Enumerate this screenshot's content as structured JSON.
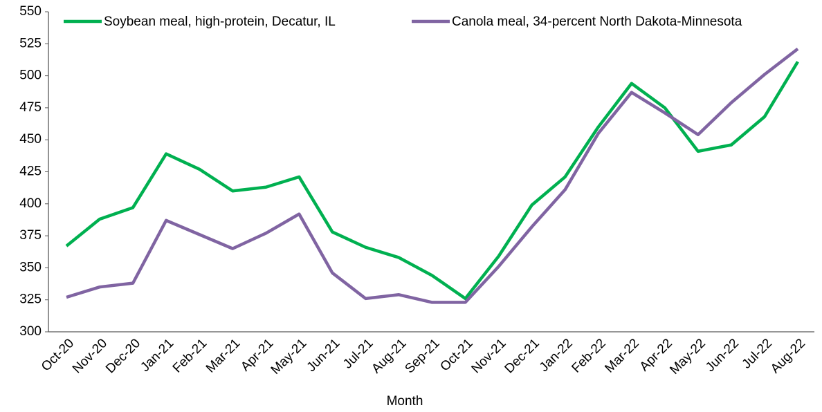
{
  "chart_data": {
    "type": "line",
    "x_label": "Month",
    "categories": [
      "Oct-20",
      "Nov-20",
      "Dec-20",
      "Jan-21",
      "Feb-21",
      "Mar-21",
      "Apr-21",
      "May-21",
      "Jun-21",
      "Jul-21",
      "Aug-21",
      "Sep-21",
      "Oct-21",
      "Nov-21",
      "Dec-21",
      "Jan-22",
      "Feb-22",
      "Mar-22",
      "Apr-22",
      "May-22",
      "Jun-22",
      "Jul-22",
      "Aug-22"
    ],
    "series": [
      {
        "name": "Soybean meal, high-protein, Decatur, IL",
        "color": "#00b050",
        "values": [
          367,
          388,
          397,
          439,
          427,
          410,
          413,
          421,
          378,
          366,
          358,
          344,
          326,
          359,
          399,
          421,
          460,
          494,
          475,
          441,
          446,
          468,
          511
        ]
      },
      {
        "name": "Canola meal, 34-percent North Dakota-Minnesota",
        "color": "#8064a2",
        "values": [
          327,
          335,
          338,
          387,
          376,
          365,
          377,
          392,
          346,
          326,
          329,
          323,
          323,
          351,
          382,
          411,
          455,
          487,
          471,
          454,
          479,
          501,
          521
        ]
      }
    ],
    "ylim": [
      300,
      550
    ],
    "yticks": [
      300,
      325,
      350,
      375,
      400,
      425,
      450,
      475,
      500,
      525,
      550
    ],
    "grid": false,
    "legend": "top"
  }
}
